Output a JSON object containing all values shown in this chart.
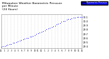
{
  "title": "Milwaukee Weather Barometric Pressure\nper Minute\n(24 Hours)",
  "title_fontsize": 3.2,
  "dot_color": "#0000ff",
  "dot_size": 0.4,
  "bg_color": "#ffffff",
  "grid_color": "#bbbbbb",
  "border_color": "#888888",
  "ylabel_color": "#000000",
  "xlabel_color": "#000000",
  "ylim": [
    29.35,
    30.18
  ],
  "xlim": [
    0,
    1440
  ],
  "yticks": [
    29.4,
    29.5,
    29.6,
    29.7,
    29.8,
    29.9,
    30.0,
    30.1
  ],
  "xtick_positions": [
    0,
    60,
    120,
    180,
    240,
    300,
    360,
    420,
    480,
    540,
    600,
    660,
    720,
    780,
    840,
    900,
    960,
    1020,
    1080,
    1140,
    1200,
    1260,
    1320,
    1380,
    1440
  ],
  "xtick_labels": [
    "12",
    "1",
    "2",
    "3",
    "4",
    "5",
    "6",
    "7",
    "8",
    "9",
    "10",
    "11",
    "12",
    "1",
    "2",
    "3",
    "4",
    "5",
    "6",
    "7",
    "8",
    "9",
    "10",
    "11",
    "12"
  ],
  "legend_label": "Barometric Pressure",
  "x_data": [
    0,
    30,
    60,
    90,
    120,
    150,
    180,
    210,
    240,
    270,
    300,
    330,
    360,
    390,
    420,
    450,
    480,
    510,
    540,
    570,
    600,
    630,
    660,
    690,
    720,
    750,
    780,
    810,
    840,
    870,
    900,
    930,
    960,
    990,
    1020,
    1050,
    1080,
    1110,
    1140,
    1170,
    1200,
    1230,
    1260,
    1290,
    1320,
    1350,
    1380,
    1410,
    1440
  ],
  "y_data": [
    29.39,
    29.4,
    29.41,
    29.42,
    29.44,
    29.45,
    29.46,
    29.48,
    29.49,
    29.51,
    29.52,
    29.53,
    29.55,
    29.57,
    29.58,
    29.6,
    29.61,
    29.63,
    29.64,
    29.65,
    29.67,
    29.7,
    29.72,
    29.74,
    29.75,
    29.77,
    29.79,
    29.81,
    29.83,
    29.85,
    29.86,
    29.88,
    29.9,
    29.93,
    29.95,
    29.97,
    29.99,
    30.01,
    30.02,
    30.04,
    30.06,
    30.07,
    30.08,
    30.09,
    30.1,
    30.11,
    30.11,
    30.12,
    30.12
  ]
}
